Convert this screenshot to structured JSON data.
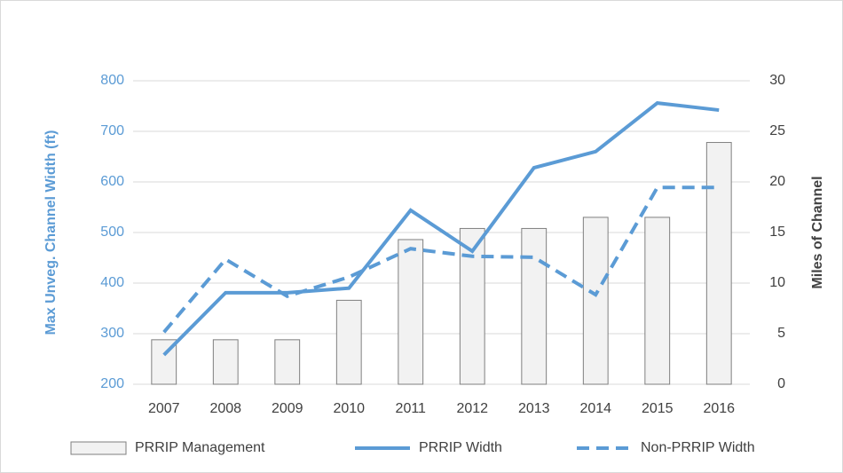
{
  "chart_data": {
    "type": "combo",
    "categories": [
      "2007",
      "2008",
      "2009",
      "2010",
      "2011",
      "2012",
      "2013",
      "2014",
      "2015",
      "2016"
    ],
    "series": [
      {
        "name": "PRRIP Management",
        "type": "bar",
        "axis": "y2",
        "color": "#f2f2f2",
        "edge_color": "#7f7f7f",
        "values": [
          4.4,
          4.4,
          4.4,
          8.3,
          14.3,
          15.4,
          15.4,
          16.5,
          16.5,
          23.9
        ]
      },
      {
        "name": "PRRIP Width",
        "type": "line",
        "line_style": "solid",
        "color": "#5b9bd5",
        "values": [
          258,
          381,
          381,
          390,
          544,
          463,
          628,
          660,
          756,
          742
        ]
      },
      {
        "name": "Non-PRRIP Width",
        "type": "line",
        "line_style": "dashed",
        "color": "#5b9bd5",
        "values": [
          303,
          447,
          374,
          412,
          468,
          453,
          451,
          377,
          589,
          589
        ]
      }
    ],
    "ylabel": "Max Unveg. Channel Width (ft)",
    "y2label": "Miles of Channel",
    "ylim": [
      200,
      800
    ],
    "yticks": [
      200,
      300,
      400,
      500,
      600,
      700,
      800
    ],
    "y2lim": [
      0,
      30
    ],
    "y2ticks": [
      0,
      5,
      10,
      15,
      20,
      25,
      30
    ],
    "grid": true,
    "legend": "bottom",
    "yaxis_color": "#5b9bd5",
    "y2axis_color": "#404040"
  }
}
